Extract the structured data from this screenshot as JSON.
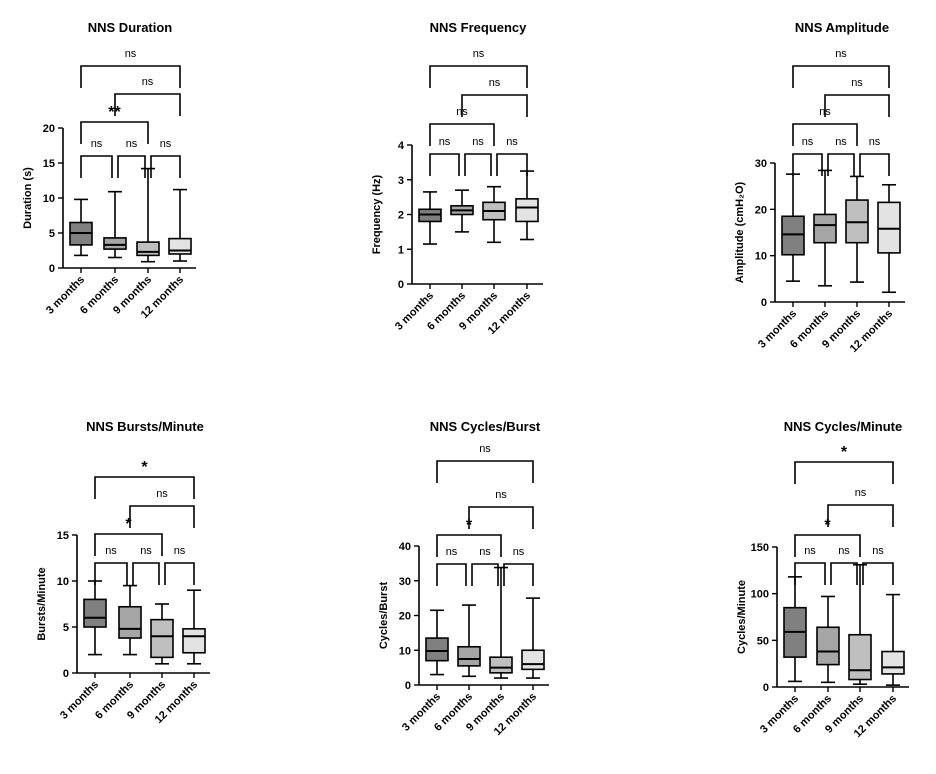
{
  "box_colors": [
    "#808080",
    "#a6a6a6",
    "#bfbfbf",
    "#e3e3e3"
  ],
  "chart_data": [
    {
      "type": "box",
      "title": "NNS Duration",
      "ylabel": "Duration (s)",
      "ylim": [
        0,
        20
      ],
      "yticks": [
        0,
        5,
        10,
        15,
        20
      ],
      "categories": [
        "3 months",
        "6 months",
        "9 months",
        "12 months"
      ],
      "boxes": [
        {
          "min": 1.8,
          "q1": 3.3,
          "median": 5.0,
          "q3": 6.5,
          "max": 9.8
        },
        {
          "min": 1.5,
          "q1": 2.7,
          "median": 3.3,
          "q3": 4.3,
          "max": 10.9
        },
        {
          "min": 0.9,
          "q1": 1.8,
          "median": 2.3,
          "q3": 3.7,
          "max": 14.2
        },
        {
          "min": 1.0,
          "q1": 2.0,
          "median": 2.5,
          "q3": 4.2,
          "max": 11.2
        }
      ],
      "comparisons": [
        {
          "from": "3 months",
          "to": "6 months",
          "label": "ns"
        },
        {
          "from": "6 months",
          "to": "9 months",
          "label": "ns"
        },
        {
          "from": "9 months",
          "to": "12 months",
          "label": "ns"
        },
        {
          "from": "3 months",
          "to": "9 months",
          "label": "**"
        },
        {
          "from": "6 months",
          "to": "12 months",
          "label": "ns"
        },
        {
          "from": "3 months",
          "to": "12 months",
          "label": "ns"
        }
      ]
    },
    {
      "type": "box",
      "title": "NNS Frequency",
      "ylabel": "Frequency (Hz)",
      "ylim": [
        0,
        4
      ],
      "yticks": [
        0,
        1,
        2,
        3,
        4
      ],
      "categories": [
        "3 months",
        "6 months",
        "9 months",
        "12 months"
      ],
      "boxes": [
        {
          "min": 1.15,
          "q1": 1.8,
          "median": 2.0,
          "q3": 2.15,
          "max": 2.65
        },
        {
          "min": 1.5,
          "q1": 2.0,
          "median": 2.12,
          "q3": 2.25,
          "max": 2.7
        },
        {
          "min": 1.2,
          "q1": 1.85,
          "median": 2.1,
          "q3": 2.35,
          "max": 2.8
        },
        {
          "min": 1.28,
          "q1": 1.8,
          "median": 2.2,
          "q3": 2.45,
          "max": 3.25
        }
      ],
      "comparisons": [
        {
          "from": "3 months",
          "to": "6 months",
          "label": "ns"
        },
        {
          "from": "6 months",
          "to": "9 months",
          "label": "ns"
        },
        {
          "from": "9 months",
          "to": "12 months",
          "label": "ns"
        },
        {
          "from": "3 months",
          "to": "9 months",
          "label": "ns"
        },
        {
          "from": "6 months",
          "to": "12 months",
          "label": "ns"
        },
        {
          "from": "3 months",
          "to": "12 months",
          "label": "ns"
        }
      ]
    },
    {
      "type": "box",
      "title": "NNS Amplitude",
      "ylabel": "Amplitude (cmH₂O)",
      "ylim": [
        0,
        30
      ],
      "yticks": [
        0,
        10,
        20,
        30
      ],
      "categories": [
        "3 months",
        "6 months",
        "9 months",
        "12 months"
      ],
      "boxes": [
        {
          "min": 4.5,
          "q1": 10.2,
          "median": 14.6,
          "q3": 18.5,
          "max": 27.6
        },
        {
          "min": 3.5,
          "q1": 12.8,
          "median": 16.6,
          "q3": 18.9,
          "max": 28.4
        },
        {
          "min": 4.3,
          "q1": 12.8,
          "median": 17.2,
          "q3": 22.0,
          "max": 27.1
        },
        {
          "min": 2.1,
          "q1": 10.6,
          "median": 15.8,
          "q3": 21.5,
          "max": 25.3
        }
      ],
      "comparisons": [
        {
          "from": "3 months",
          "to": "6 months",
          "label": "ns"
        },
        {
          "from": "6 months",
          "to": "9 months",
          "label": "ns"
        },
        {
          "from": "9 months",
          "to": "12 months",
          "label": "ns"
        },
        {
          "from": "3 months",
          "to": "9 months",
          "label": "ns"
        },
        {
          "from": "6 months",
          "to": "12 months",
          "label": "ns"
        },
        {
          "from": "3 months",
          "to": "12 months",
          "label": "ns"
        }
      ]
    },
    {
      "type": "box",
      "title": "NNS Bursts/Minute",
      "ylabel": "Bursts/Minute",
      "ylim": [
        0,
        15
      ],
      "yticks": [
        0,
        5,
        10,
        15
      ],
      "categories": [
        "3 months",
        "6 months",
        "9 months",
        "12 months"
      ],
      "boxes": [
        {
          "min": 2.0,
          "q1": 5.0,
          "median": 6.0,
          "q3": 8.0,
          "max": 10.0
        },
        {
          "min": 2.0,
          "q1": 3.8,
          "median": 4.8,
          "q3": 7.2,
          "max": 9.5
        },
        {
          "min": 1.0,
          "q1": 1.7,
          "median": 4.0,
          "q3": 5.8,
          "max": 7.5
        },
        {
          "min": 1.0,
          "q1": 2.2,
          "median": 4.0,
          "q3": 4.8,
          "max": 9.0
        }
      ],
      "comparisons": [
        {
          "from": "3 months",
          "to": "6 months",
          "label": "ns"
        },
        {
          "from": "6 months",
          "to": "9 months",
          "label": "ns"
        },
        {
          "from": "9 months",
          "to": "12 months",
          "label": "ns"
        },
        {
          "from": "3 months",
          "to": "9 months",
          "label": "*"
        },
        {
          "from": "6 months",
          "to": "12 months",
          "label": "ns"
        },
        {
          "from": "3 months",
          "to": "12 months",
          "label": "*"
        }
      ]
    },
    {
      "type": "box",
      "title": "NNS Cycles/Burst",
      "ylabel": "Cycles/Burst",
      "ylim": [
        0,
        40
      ],
      "yticks": [
        0,
        10,
        20,
        30,
        40
      ],
      "categories": [
        "3 months",
        "6 months",
        "9 months",
        "12 months"
      ],
      "boxes": [
        {
          "min": 3.0,
          "q1": 7.0,
          "median": 9.8,
          "q3": 13.5,
          "max": 21.5
        },
        {
          "min": 2.5,
          "q1": 5.5,
          "median": 7.5,
          "q3": 11.0,
          "max": 23.0
        },
        {
          "min": 2.0,
          "q1": 3.5,
          "median": 5.0,
          "q3": 8.0,
          "max": 33.8
        },
        {
          "min": 2.0,
          "q1": 4.5,
          "median": 6.0,
          "q3": 10.0,
          "max": 25.0
        }
      ],
      "comparisons": [
        {
          "from": "3 months",
          "to": "6 months",
          "label": "ns"
        },
        {
          "from": "6 months",
          "to": "9 months",
          "label": "ns"
        },
        {
          "from": "9 months",
          "to": "12 months",
          "label": "ns"
        },
        {
          "from": "3 months",
          "to": "9 months",
          "label": "*"
        },
        {
          "from": "6 months",
          "to": "12 months",
          "label": "ns"
        },
        {
          "from": "3 months",
          "to": "12 months",
          "label": "ns"
        }
      ]
    },
    {
      "type": "box",
      "title": "NNS Cycles/Minute",
      "ylabel": "Cycles/Minute",
      "ylim": [
        0,
        150
      ],
      "yticks": [
        0,
        50,
        100,
        150
      ],
      "categories": [
        "3 months",
        "6 months",
        "9 months",
        "12 months"
      ],
      "boxes": [
        {
          "min": 6,
          "q1": 32,
          "median": 59,
          "q3": 85,
          "max": 118
        },
        {
          "min": 5,
          "q1": 24,
          "median": 38,
          "q3": 64,
          "max": 97
        },
        {
          "min": 3,
          "q1": 8,
          "median": 18,
          "q3": 56,
          "max": 131
        },
        {
          "min": 2,
          "q1": 14,
          "median": 21,
          "q3": 38,
          "max": 99
        }
      ],
      "comparisons": [
        {
          "from": "3 months",
          "to": "6 months",
          "label": "ns"
        },
        {
          "from": "6 months",
          "to": "9 months",
          "label": "ns"
        },
        {
          "from": "9 months",
          "to": "12 months",
          "label": "ns"
        },
        {
          "from": "3 months",
          "to": "9 months",
          "label": "*"
        },
        {
          "from": "6 months",
          "to": "12 months",
          "label": "ns"
        },
        {
          "from": "3 months",
          "to": "12 months",
          "label": "*"
        }
      ]
    }
  ]
}
